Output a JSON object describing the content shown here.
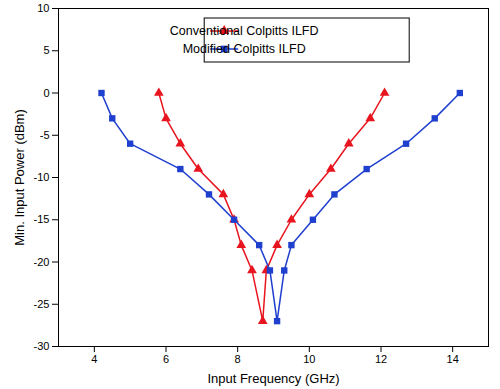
{
  "chart_data": {
    "type": "line",
    "xlabel": "Input Frequency (GHz)",
    "ylabel": "Min. Input Power (dBm)",
    "xlim": [
      3,
      15
    ],
    "xticks": [
      4,
      6,
      8,
      10,
      12,
      14
    ],
    "ylim": [
      -30,
      10
    ],
    "yticks": [
      -30,
      -25,
      -20,
      -15,
      -10,
      -5,
      0,
      5,
      10
    ],
    "grid": false,
    "legend": "upper center",
    "series": [
      {
        "name": "Conventional Colpitts ILFD",
        "color": "#e8141e",
        "marker": "triangle",
        "line_style": "solid",
        "x": [
          5.8,
          6.0,
          6.4,
          6.9,
          7.6,
          7.9,
          8.1,
          8.4,
          8.7,
          8.8,
          9.1,
          9.5,
          10.0,
          10.6,
          11.1,
          11.7,
          12.1
        ],
        "values": [
          0,
          -3,
          -6,
          -9,
          -12,
          -15,
          -18,
          -21,
          -27,
          -21,
          -18,
          -15,
          -12,
          -9,
          -6,
          -3,
          0
        ]
      },
      {
        "name": "Modified Colpitts ILFD",
        "color": "#1f3fce",
        "marker": "square",
        "line_style": "solid",
        "x": [
          4.2,
          4.5,
          5.0,
          6.4,
          7.2,
          7.9,
          8.6,
          8.9,
          9.1,
          9.3,
          9.5,
          10.1,
          10.7,
          11.6,
          12.7,
          13.5,
          14.2
        ],
        "values": [
          0,
          -3,
          -6,
          -9,
          -12,
          -15,
          -18,
          -21,
          -27,
          -21,
          -18,
          -15,
          -12,
          -9,
          -6,
          -3,
          0
        ]
      }
    ]
  }
}
